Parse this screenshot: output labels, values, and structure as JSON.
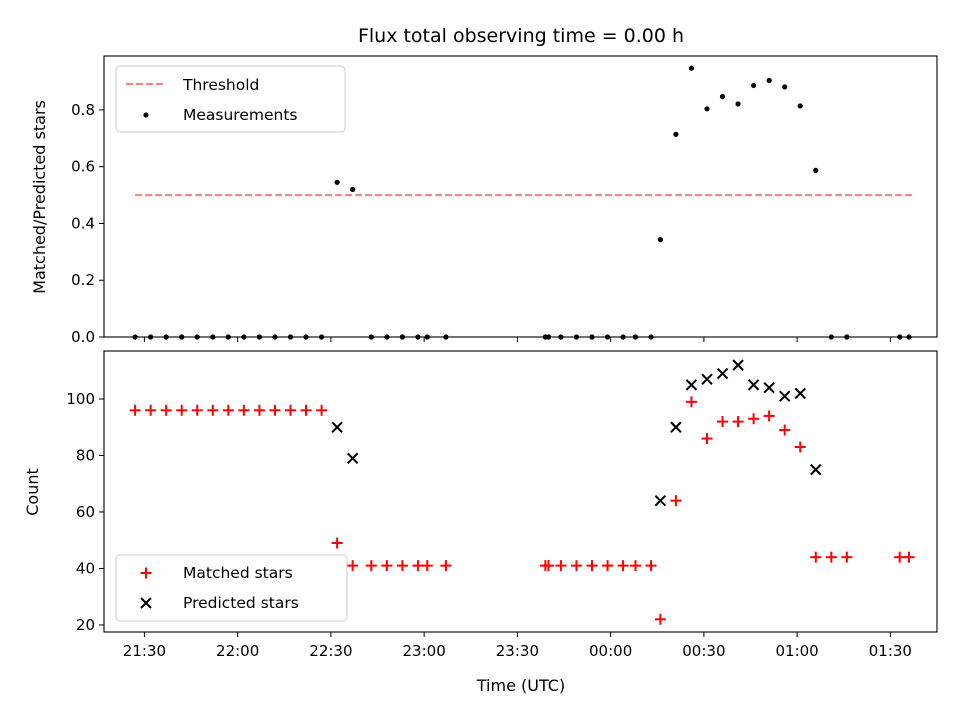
{
  "chart_data": [
    {
      "type": "scatter",
      "title": "Flux total observing time = 0.00 h",
      "ylabel": "Matched/Predicted stars",
      "xlabel": "",
      "ylim": [
        0,
        0.99
      ],
      "yticks": [
        "0.0",
        "0.2",
        "0.4",
        "0.6",
        "0.8"
      ],
      "legend_position": "upper-left",
      "threshold": {
        "name": "Threshold",
        "value": 0.5,
        "x_start": "21:27",
        "x_end": "01:37",
        "color": "#ff7f7f"
      },
      "series": [
        {
          "name": "Measurements",
          "color": "#000000",
          "points": [
            [
              "21:27",
              0.0
            ],
            [
              "21:32",
              0.0
            ],
            [
              "21:37",
              0.0
            ],
            [
              "21:42",
              0.0
            ],
            [
              "21:47",
              0.0
            ],
            [
              "21:52",
              0.0
            ],
            [
              "21:57",
              0.0
            ],
            [
              "22:02",
              0.0
            ],
            [
              "22:07",
              0.0
            ],
            [
              "22:12",
              0.0
            ],
            [
              "22:17",
              0.0
            ],
            [
              "22:22",
              0.0
            ],
            [
              "22:27",
              0.0
            ],
            [
              "22:32",
              0.545
            ],
            [
              "22:37",
              0.52
            ],
            [
              "22:43",
              0.0
            ],
            [
              "22:48",
              0.0
            ],
            [
              "22:53",
              0.0
            ],
            [
              "22:58",
              0.0
            ],
            [
              "23:01",
              0.0
            ],
            [
              "23:07",
              0.0
            ],
            [
              "23:39",
              0.0
            ],
            [
              "23:40",
              0.0
            ],
            [
              "23:44",
              0.0
            ],
            [
              "23:49",
              0.0
            ],
            [
              "23:54",
              0.0
            ],
            [
              "23:59",
              0.0
            ],
            [
              "00:04",
              0.0
            ],
            [
              "00:08",
              0.0
            ],
            [
              "00:13",
              0.0
            ],
            [
              "00:16",
              0.343
            ],
            [
              "00:21",
              0.714
            ],
            [
              "00:26",
              0.947
            ],
            [
              "00:31",
              0.804
            ],
            [
              "00:36",
              0.847
            ],
            [
              "00:41",
              0.821
            ],
            [
              "00:46",
              0.886
            ],
            [
              "00:51",
              0.904
            ],
            [
              "00:56",
              0.881
            ],
            [
              "01:01",
              0.814
            ],
            [
              "01:06",
              0.587
            ],
            [
              "01:11",
              0.0
            ],
            [
              "01:16",
              0.0
            ],
            [
              "01:33",
              0.0
            ],
            [
              "01:36",
              0.0
            ]
          ]
        }
      ]
    },
    {
      "type": "scatter",
      "title": "",
      "ylabel": "Count",
      "xlabel": "Time (UTC)",
      "ylim": [
        17.5,
        117
      ],
      "yticks": [
        "20",
        "40",
        "60",
        "80",
        "100"
      ],
      "xlim": [
        "21:17",
        "01:45"
      ],
      "xticks": [
        "21:30",
        "22:00",
        "22:30",
        "23:00",
        "23:30",
        "00:00",
        "00:30",
        "01:00",
        "01:30"
      ],
      "legend_position": "lower-left",
      "series": [
        {
          "name": "Matched stars",
          "marker": "plus",
          "color": "#ff0000",
          "points": [
            [
              "21:27",
              96
            ],
            [
              "21:32",
              96
            ],
            [
              "21:37",
              96
            ],
            [
              "21:42",
              96
            ],
            [
              "21:47",
              96
            ],
            [
              "21:52",
              96
            ],
            [
              "21:57",
              96
            ],
            [
              "22:02",
              96
            ],
            [
              "22:07",
              96
            ],
            [
              "22:12",
              96
            ],
            [
              "22:17",
              96
            ],
            [
              "22:22",
              96
            ],
            [
              "22:27",
              96
            ],
            [
              "22:32",
              49
            ],
            [
              "22:37",
              41
            ],
            [
              "22:43",
              41
            ],
            [
              "22:48",
              41
            ],
            [
              "22:53",
              41
            ],
            [
              "22:58",
              41
            ],
            [
              "23:01",
              41
            ],
            [
              "23:07",
              41
            ],
            [
              "23:39",
              41
            ],
            [
              "23:40",
              41
            ],
            [
              "23:44",
              41
            ],
            [
              "23:49",
              41
            ],
            [
              "23:54",
              41
            ],
            [
              "23:59",
              41
            ],
            [
              "00:04",
              41
            ],
            [
              "00:08",
              41
            ],
            [
              "00:13",
              41
            ],
            [
              "00:16",
              22
            ],
            [
              "00:21",
              64
            ],
            [
              "00:26",
              99
            ],
            [
              "00:31",
              86
            ],
            [
              "00:36",
              92
            ],
            [
              "00:41",
              92
            ],
            [
              "00:46",
              93
            ],
            [
              "00:51",
              94
            ],
            [
              "00:56",
              89
            ],
            [
              "01:01",
              83
            ],
            [
              "01:06",
              44
            ],
            [
              "01:11",
              44
            ],
            [
              "01:16",
              44
            ],
            [
              "01:33",
              44
            ],
            [
              "01:36",
              44
            ]
          ]
        },
        {
          "name": "Predicted stars",
          "marker": "x",
          "color": "#000000",
          "points": [
            [
              "22:32",
              90
            ],
            [
              "22:37",
              79
            ],
            [
              "00:16",
              64
            ],
            [
              "00:21",
              90
            ],
            [
              "00:26",
              105
            ],
            [
              "00:31",
              107
            ],
            [
              "00:36",
              109
            ],
            [
              "00:41",
              112
            ],
            [
              "00:46",
              105
            ],
            [
              "00:51",
              104
            ],
            [
              "00:56",
              101
            ],
            [
              "01:01",
              102
            ],
            [
              "01:06",
              75
            ]
          ]
        }
      ]
    }
  ]
}
